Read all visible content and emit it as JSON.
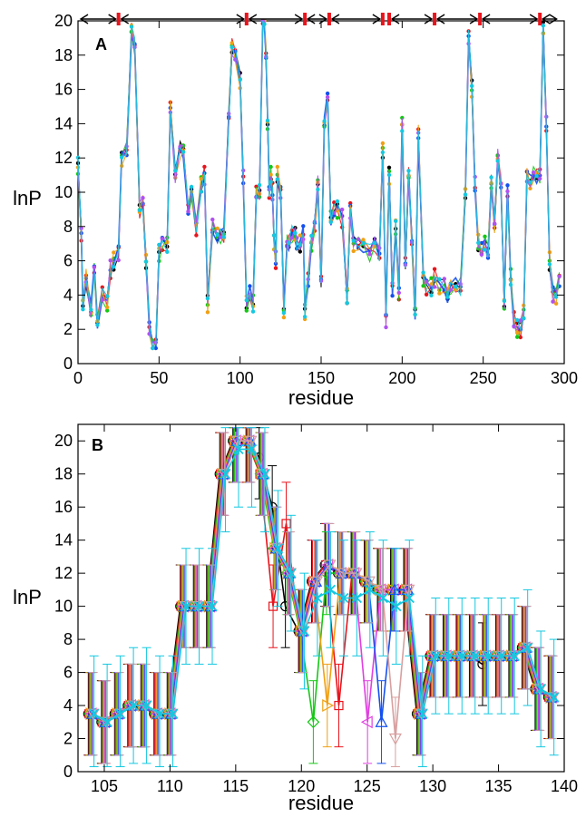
{
  "chart_data": [
    {
      "type": "line",
      "panel_label": "A",
      "xlabel": "residue",
      "ylabel": "lnP",
      "xlim": [
        0,
        300
      ],
      "ylim": [
        0,
        20
      ],
      "xticks": [
        0,
        50,
        100,
        150,
        200,
        250,
        300
      ],
      "yticks": [
        0,
        2,
        4,
        6,
        8,
        10,
        12,
        14,
        16,
        18,
        20
      ],
      "grid": false,
      "legend": "none",
      "series_colors": [
        "#000000",
        "#e8141c",
        "#14c814",
        "#1450f0",
        "#f0a014",
        "#b050f0",
        "#14c8e0"
      ],
      "segment_markers": [
        0,
        25,
        104,
        140,
        155,
        188,
        192,
        220,
        248,
        285,
        297
      ],
      "series": [
        {
          "x": [
            0,
            2,
            3,
            5,
            8,
            10,
            12,
            15,
            18,
            20,
            22,
            25,
            27,
            30,
            33,
            35,
            38,
            40,
            42,
            44,
            46,
            48,
            50,
            52,
            55,
            57,
            60,
            63,
            65,
            68,
            70,
            73,
            76,
            78,
            80,
            83,
            86,
            88,
            90,
            93,
            95,
            97,
            100,
            102,
            104,
            106,
            108,
            110,
            112,
            114,
            115,
            116,
            117,
            118,
            119,
            120,
            121,
            122,
            123,
            125,
            127,
            129,
            130,
            132,
            134,
            135,
            137,
            139,
            140,
            142,
            144,
            146,
            148,
            150,
            152,
            154,
            156,
            158,
            160,
            163,
            166,
            168,
            170,
            173,
            176,
            180,
            183,
            186,
            188,
            190,
            192,
            194,
            196,
            198,
            200,
            202,
            204,
            206,
            208,
            210,
            213,
            215,
            218,
            220,
            223,
            226,
            228,
            230,
            233,
            236,
            239,
            241,
            243,
            245,
            247,
            249,
            251,
            253,
            255,
            257,
            259,
            261,
            263,
            265,
            267,
            269,
            271,
            273,
            275,
            277,
            279,
            281,
            283,
            285,
            287,
            289,
            291,
            293,
            295,
            297
          ],
          "values": [
            11.5,
            7.5,
            3.5,
            5.0,
            3.0,
            5.5,
            2.5,
            4.0,
            3.5,
            5.5,
            6.0,
            6.5,
            12.0,
            12.5,
            19.5,
            18.5,
            9.0,
            9.5,
            6.0,
            2.0,
            1.0,
            1.2,
            6.5,
            7.0,
            7.0,
            15.0,
            11.0,
            12.5,
            12.5,
            9.0,
            10.0,
            8.0,
            10.5,
            11.0,
            3.5,
            8.0,
            7.5,
            7.5,
            7.5,
            14.5,
            18.5,
            18.0,
            16.5,
            11.0,
            3.5,
            4.0,
            3.5,
            10.0,
            10.0,
            20.0,
            20.0,
            18.0,
            14.0,
            10.0,
            11.0,
            10.0,
            7.0,
            6.0,
            11.0,
            10.0,
            3.0,
            7.0,
            7.0,
            7.5,
            7.5,
            7.0,
            7.0,
            7.5,
            3.0,
            5.0,
            7.0,
            8.0,
            10.5,
            5.0,
            14.0,
            15.5,
            8.5,
            9.0,
            9.0,
            8.5,
            4.0,
            9.0,
            7.0,
            7.0,
            7.0,
            6.5,
            7.0,
            6.5,
            12.5,
            2.5,
            11.0,
            4.5,
            8.0,
            4.0,
            14.0,
            6.0,
            11.0,
            7.0,
            3.0,
            13.5,
            5.0,
            4.5,
            4.5,
            5.0,
            4.5,
            4.5,
            4.0,
            4.5,
            4.5,
            4.5,
            10.0,
            19.0,
            16.0,
            10.5,
            7.0,
            6.5,
            7.0,
            6.5,
            10.5,
            8.0,
            12.0,
            10.5,
            3.5,
            10.0,
            5.0,
            2.5,
            2.0,
            2.0,
            3.0,
            11.0,
            10.5,
            11.0,
            11.0,
            11.0,
            19.5,
            14.0,
            6.0,
            4.0,
            4.0,
            5.0
          ]
        }
      ]
    },
    {
      "type": "line",
      "panel_label": "B",
      "xlabel": "residue",
      "ylabel": "lnP",
      "xlim": [
        103,
        140
      ],
      "ylim": [
        0,
        21
      ],
      "xticks": [
        105,
        110,
        115,
        120,
        125,
        130,
        135,
        140
      ],
      "yticks": [
        0,
        2,
        4,
        6,
        8,
        10,
        12,
        14,
        16,
        18,
        20
      ],
      "grid": false,
      "legend": "none",
      "series": [
        {
          "color": "#000000",
          "x": [
            104,
            105,
            106,
            107,
            108,
            109,
            110,
            111,
            112,
            113,
            114,
            115,
            116,
            117,
            118,
            119,
            120,
            121,
            122,
            123,
            124,
            125,
            126,
            127,
            128,
            129,
            130,
            131,
            132,
            133,
            134,
            135,
            136,
            137,
            138,
            139
          ],
          "values": [
            3.5,
            3.0,
            3.5,
            4.0,
            4.0,
            3.5,
            3.5,
            10.0,
            10.0,
            10.0,
            18.0,
            20.0,
            20.0,
            19.0,
            16.0,
            10.0,
            8.5,
            11.5,
            12.5,
            12.0,
            12.0,
            11.5,
            11.0,
            11.0,
            11.0,
            3.5,
            7.0,
            7.0,
            7.0,
            7.0,
            6.5,
            7.0,
            7.0,
            7.5,
            5.0,
            4.5
          ],
          "err": 2.5
        },
        {
          "color": "#e8141c",
          "x": [
            104,
            105,
            106,
            107,
            108,
            109,
            110,
            111,
            112,
            113,
            114,
            115,
            116,
            117,
            118,
            119,
            120,
            121,
            122,
            123,
            124,
            125,
            126,
            127,
            128,
            129,
            130,
            131,
            132,
            133,
            134,
            135,
            136,
            137,
            138,
            139
          ],
          "values": [
            3.5,
            3.0,
            3.5,
            4.0,
            4.0,
            3.5,
            3.5,
            10.0,
            10.0,
            10.0,
            18.0,
            20.0,
            20.0,
            18.0,
            10.0,
            15.0,
            8.5,
            11.5,
            12.5,
            4.0,
            12.0,
            11.5,
            11.0,
            11.0,
            11.0,
            3.5,
            7.0,
            7.0,
            7.0,
            7.0,
            7.0,
            7.0,
            7.0,
            7.5,
            5.0,
            4.5
          ],
          "err": 2.5
        },
        {
          "color": "#14c814",
          "x": [
            104,
            105,
            106,
            107,
            108,
            109,
            110,
            111,
            112,
            113,
            114,
            115,
            116,
            117,
            118,
            119,
            120,
            121,
            122,
            123,
            124,
            125,
            126,
            127,
            128,
            129,
            130,
            131,
            132,
            133,
            134,
            135,
            136,
            137,
            138,
            139
          ],
          "values": [
            3.5,
            3.0,
            3.5,
            4.0,
            4.0,
            3.5,
            3.5,
            10.0,
            10.0,
            10.0,
            18.0,
            20.0,
            20.0,
            18.0,
            13.5,
            12.0,
            8.5,
            3.0,
            12.0,
            12.0,
            12.0,
            11.5,
            11.0,
            11.0,
            11.0,
            3.5,
            7.0,
            7.0,
            7.0,
            7.0,
            7.0,
            7.0,
            7.0,
            7.5,
            5.0,
            4.5
          ],
          "err": 2.5
        },
        {
          "color": "#f0a014",
          "x": [
            104,
            105,
            106,
            107,
            108,
            109,
            110,
            111,
            112,
            113,
            114,
            115,
            116,
            117,
            118,
            119,
            120,
            121,
            122,
            123,
            124,
            125,
            126,
            127,
            128,
            129,
            130,
            131,
            132,
            133,
            134,
            135,
            136,
            137,
            138,
            139
          ],
          "values": [
            3.5,
            3.0,
            3.5,
            4.0,
            4.0,
            3.5,
            3.5,
            10.0,
            10.0,
            10.0,
            18.0,
            20.0,
            20.0,
            18.0,
            13.5,
            12.0,
            8.5,
            11.5,
            4.0,
            12.0,
            12.0,
            11.5,
            11.0,
            11.0,
            11.0,
            3.5,
            7.0,
            7.0,
            7.0,
            7.0,
            7.0,
            7.0,
            7.0,
            7.5,
            5.0,
            4.5
          ],
          "err": 2.5
        },
        {
          "color": "#e040e0",
          "x": [
            104,
            105,
            106,
            107,
            108,
            109,
            110,
            111,
            112,
            113,
            114,
            115,
            116,
            117,
            118,
            119,
            120,
            121,
            122,
            123,
            124,
            125,
            126,
            127,
            128,
            129,
            130,
            131,
            132,
            133,
            134,
            135,
            136,
            137,
            138,
            139
          ],
          "values": [
            3.5,
            3.0,
            3.5,
            4.0,
            4.0,
            3.5,
            3.5,
            10.0,
            10.0,
            10.0,
            18.0,
            20.0,
            20.0,
            18.0,
            13.5,
            12.0,
            8.5,
            11.5,
            12.5,
            12.0,
            12.0,
            3.0,
            11.0,
            11.0,
            11.0,
            3.5,
            7.0,
            7.0,
            7.0,
            7.0,
            7.0,
            7.0,
            7.0,
            7.5,
            5.0,
            4.5
          ],
          "err": 2.5
        },
        {
          "color": "#1450f0",
          "x": [
            104,
            105,
            106,
            107,
            108,
            109,
            110,
            111,
            112,
            113,
            114,
            115,
            116,
            117,
            118,
            119,
            120,
            121,
            122,
            123,
            124,
            125,
            126,
            127,
            128,
            129,
            130,
            131,
            132,
            133,
            134,
            135,
            136,
            137,
            138,
            139
          ],
          "values": [
            3.5,
            3.0,
            3.5,
            4.0,
            4.0,
            3.5,
            3.5,
            10.0,
            10.0,
            10.0,
            18.0,
            20.0,
            20.0,
            18.0,
            13.5,
            12.0,
            8.5,
            11.5,
            12.5,
            12.0,
            12.0,
            11.5,
            3.0,
            11.0,
            11.0,
            3.5,
            7.0,
            7.0,
            7.0,
            7.0,
            7.0,
            7.0,
            7.0,
            7.5,
            5.0,
            4.5
          ],
          "err": 2.5
        },
        {
          "color": "#d8a0a0",
          "x": [
            104,
            105,
            106,
            107,
            108,
            109,
            110,
            111,
            112,
            113,
            114,
            115,
            116,
            117,
            118,
            119,
            120,
            121,
            122,
            123,
            124,
            125,
            126,
            127,
            128,
            129,
            130,
            131,
            132,
            133,
            134,
            135,
            136,
            137,
            138,
            139
          ],
          "values": [
            3.5,
            3.0,
            3.5,
            4.0,
            4.0,
            3.5,
            3.5,
            10.0,
            10.0,
            10.0,
            18.0,
            20.0,
            20.0,
            18.0,
            13.5,
            12.0,
            8.5,
            11.5,
            12.5,
            12.0,
            12.0,
            11.5,
            11.0,
            2.0,
            11.0,
            3.5,
            7.0,
            7.0,
            7.0,
            7.0,
            7.0,
            7.0,
            7.0,
            7.5,
            5.0,
            4.5
          ],
          "err": 2.5
        },
        {
          "color": "#14c8e0",
          "x": [
            104,
            105,
            106,
            107,
            108,
            109,
            110,
            111,
            112,
            113,
            114,
            115,
            116,
            117,
            118,
            119,
            120,
            121,
            122,
            123,
            124,
            125,
            126,
            127,
            128,
            129,
            130,
            131,
            132,
            133,
            134,
            135,
            136,
            137,
            138,
            139
          ],
          "values": [
            3.5,
            3.0,
            3.5,
            4.0,
            4.0,
            3.5,
            3.5,
            10.0,
            10.0,
            10.0,
            18.0,
            19.5,
            19.5,
            18.0,
            13.5,
            12.0,
            8.5,
            10.5,
            11.0,
            10.5,
            10.5,
            11.0,
            10.5,
            10.0,
            10.5,
            3.5,
            7.0,
            7.0,
            7.0,
            7.0,
            7.0,
            7.0,
            7.0,
            7.5,
            5.0,
            4.5
          ],
          "err": 3.5
        }
      ]
    }
  ]
}
